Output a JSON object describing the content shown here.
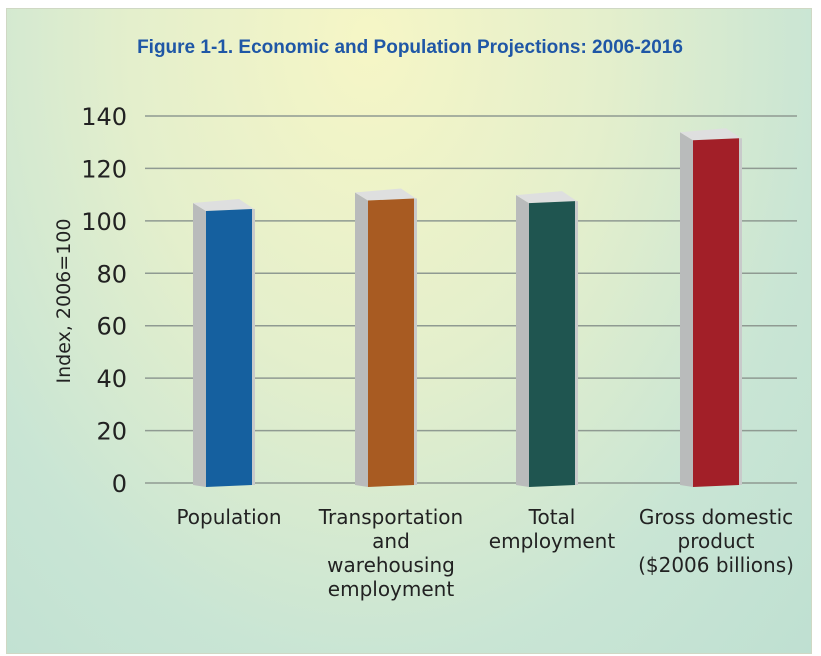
{
  "chart_data": {
    "type": "bar",
    "title": "Figure 1-1.  Economic and Population Projections: 2006-2016",
    "ylabel": "Index, 2006=100",
    "xlabel": "",
    "ylim": [
      0,
      140
    ],
    "yticks": [
      0,
      20,
      40,
      60,
      80,
      100,
      120,
      140
    ],
    "grid": true,
    "categories": [
      [
        "Population"
      ],
      [
        "Transportation",
        "and",
        "warehousing",
        "employment"
      ],
      [
        "Total",
        "employment"
      ],
      [
        "Gross domestic",
        "product",
        "($2006 billions)"
      ]
    ],
    "values": [
      103,
      107,
      106,
      130
    ],
    "colors": [
      "#15609f",
      "#a85b22",
      "#1f5550",
      "#a21f28"
    ]
  }
}
